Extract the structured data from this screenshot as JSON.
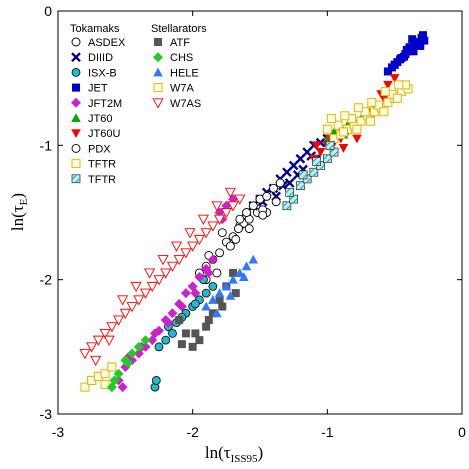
{
  "chart_data": {
    "type": "scatter",
    "title": "",
    "xlabel": {
      "main": "ln(τ",
      "sub": "ISS95",
      "close": ")"
    },
    "ylabel": {
      "main": "ln(τ",
      "sub": "E",
      "close": ")"
    },
    "xlim": [
      -3,
      0
    ],
    "ylim": [
      -3,
      0
    ],
    "x_ticks": [
      -3,
      -2,
      -1,
      0
    ],
    "y_ticks": [
      -3,
      -2,
      -1,
      0
    ],
    "x_tick_labels": [
      "-3",
      "-2",
      "-1",
      "0"
    ],
    "y_tick_labels": [
      "-3",
      "-2",
      "-1",
      "0"
    ],
    "grid": false,
    "legend_placement": "top-left",
    "legend_groups": [
      {
        "heading": "Tokamaks",
        "entries": [
          "ASDEX",
          "DIIID",
          "ISX-B",
          "JET",
          "JFT2M",
          "JT60",
          "JT60U",
          "PDX",
          "TFTR",
          "TFTR"
        ]
      },
      {
        "heading": "Stellarators",
        "entries": [
          "ATF",
          "CHS",
          "HELE",
          "W7A",
          "W7AS"
        ]
      }
    ],
    "series": [
      {
        "name": "ASDEX",
        "marker": "circle-open",
        "color": "#000000",
        "x": [
          -1.95,
          -1.9,
          -1.85,
          -1.8,
          -1.75,
          -1.7,
          -1.65,
          -1.6,
          -1.55,
          -1.5,
          -1.45,
          -1.9,
          -1.82,
          -1.72,
          -1.62,
          -1.52,
          -1.78,
          -1.68,
          -1.58,
          -1.48,
          -1.88,
          -1.66
        ],
        "y": [
          -1.95,
          -1.9,
          -1.85,
          -1.8,
          -1.72,
          -1.68,
          -1.6,
          -1.52,
          -1.45,
          -1.4,
          -1.5,
          -2.0,
          -1.95,
          -1.75,
          -1.58,
          -1.5,
          -1.65,
          -1.7,
          -1.55,
          -1.48,
          -1.82,
          -1.62
        ]
      },
      {
        "name": "DIIID",
        "marker": "x",
        "color": "#00008b",
        "x": [
          -1.55,
          -1.5,
          -1.45,
          -1.4,
          -1.35,
          -1.3,
          -1.25,
          -1.2,
          -1.15,
          -1.1,
          -1.05,
          -1.0,
          -1.38,
          -1.28,
          -1.18,
          -1.08,
          -1.48,
          -1.33,
          -1.22,
          -1.12
        ],
        "y": [
          -1.45,
          -1.4,
          -1.35,
          -1.32,
          -1.25,
          -1.2,
          -1.15,
          -1.1,
          -1.05,
          -1.0,
          -0.98,
          -0.95,
          -1.38,
          -1.28,
          -1.18,
          -1.1,
          -1.42,
          -1.3,
          -1.22,
          -1.08
        ]
      },
      {
        "name": "ISX-B",
        "marker": "circle",
        "color": "#22bbcc",
        "x": [
          -2.2,
          -2.15,
          -2.1,
          -2.05,
          -2.0,
          -1.95,
          -1.9,
          -1.85,
          -2.25,
          -2.18,
          -2.08,
          -1.98,
          -2.28,
          -2.27,
          -1.92,
          -2.12
        ],
        "y": [
          -2.45,
          -2.4,
          -2.3,
          -2.25,
          -2.2,
          -2.15,
          -2.1,
          -2.05,
          -2.5,
          -2.35,
          -2.28,
          -2.18,
          -2.8,
          -2.75,
          -2.0,
          -2.32
        ]
      },
      {
        "name": "JET",
        "marker": "square",
        "color": "#0000cc",
        "x": [
          -0.55,
          -0.5,
          -0.45,
          -0.4,
          -0.35,
          -0.3,
          -0.48,
          -0.42,
          -0.38,
          -0.33,
          -0.28,
          -0.52,
          -0.46,
          -0.36,
          -0.31,
          -0.43,
          -0.39,
          -0.34,
          -0.29,
          -0.5,
          -0.41,
          -0.37
        ],
        "y": [
          -0.45,
          -0.4,
          -0.35,
          -0.3,
          -0.25,
          -0.2,
          -0.38,
          -0.32,
          -0.28,
          -0.24,
          -0.22,
          -0.42,
          -0.36,
          -0.3,
          -0.26,
          -0.34,
          -0.27,
          -0.23,
          -0.18,
          -0.4,
          -0.29,
          -0.21
        ]
      },
      {
        "name": "JFT2M",
        "marker": "diamond",
        "color": "#cc22cc",
        "x": [
          -2.5,
          -2.45,
          -2.4,
          -2.35,
          -2.3,
          -2.25,
          -2.2,
          -2.15,
          -2.1,
          -2.05,
          -2.0,
          -1.95,
          -1.9,
          -1.85,
          -1.8,
          -1.75,
          -1.7,
          -2.48,
          -2.38,
          -2.28,
          -2.18,
          -2.08,
          -1.98,
          -1.88,
          -1.78,
          -2.55,
          -2.52
        ],
        "y": [
          -2.65,
          -2.6,
          -2.55,
          -2.5,
          -2.45,
          -2.38,
          -2.3,
          -2.25,
          -2.18,
          -2.1,
          -2.05,
          -1.98,
          -1.92,
          -1.85,
          -1.5,
          -1.45,
          -1.4,
          -2.58,
          -2.5,
          -2.4,
          -2.32,
          -2.2,
          -2.1,
          -1.95,
          -1.55,
          -2.75,
          -2.8
        ]
      },
      {
        "name": "JT60",
        "marker": "triangle",
        "color": "#00aa00",
        "x": [
          -1.0,
          -0.95,
          -0.9,
          -0.85,
          -0.8,
          -0.75,
          -0.7,
          -0.98,
          -0.88,
          -0.78
        ],
        "y": [
          -0.95,
          -0.9,
          -0.88,
          -0.85,
          -0.82,
          -0.8,
          -0.75,
          -1.0,
          -0.92,
          -0.86
        ]
      },
      {
        "name": "JT60U",
        "marker": "triangle-down",
        "color": "#ff0000",
        "x": [
          -1.1,
          -1.05,
          -1.0,
          -0.95,
          -0.9,
          -0.85,
          -0.8,
          -0.75,
          -0.7,
          -0.65,
          -0.6,
          -0.55,
          -0.5,
          -1.08,
          -0.98,
          -0.88,
          -0.78,
          -0.68,
          -0.58
        ],
        "y": [
          -1.1,
          -1.05,
          -1.0,
          -0.98,
          -0.95,
          -0.9,
          -0.85,
          -0.82,
          -0.75,
          -0.7,
          -0.62,
          -0.55,
          -0.5,
          -1.0,
          -0.95,
          -1.02,
          -0.95,
          -0.8,
          -0.65
        ]
      },
      {
        "name": "PDX",
        "marker": "circle-open",
        "color": "#000000",
        "x": [
          -1.65,
          -1.6,
          -1.55,
          -1.5,
          -1.45,
          -1.4,
          -1.35,
          -1.58,
          -1.48,
          -1.38
        ],
        "y": [
          -1.55,
          -1.5,
          -1.45,
          -1.4,
          -1.38,
          -1.32,
          -1.28,
          -1.62,
          -1.52,
          -1.42
        ]
      },
      {
        "name": "TFTR",
        "marker": "square-open",
        "color": "#ddbb00",
        "x": [
          -0.95,
          -0.9,
          -0.85,
          -0.8,
          -0.75,
          -0.7,
          -0.65,
          -0.6,
          -0.55,
          -0.5,
          -0.45,
          -0.4,
          -0.92,
          -0.82,
          -0.72,
          -0.62,
          -0.52,
          -0.42,
          -0.88,
          -0.78,
          -0.68,
          -0.58,
          -0.48,
          -1.0,
          -0.97,
          -0.87,
          -0.77,
          -0.67,
          -0.57,
          -0.47,
          -2.75,
          -2.7,
          -2.65
        ],
        "y": [
          -0.95,
          -0.92,
          -0.88,
          -0.85,
          -0.82,
          -0.78,
          -0.75,
          -0.72,
          -0.68,
          -0.65,
          -0.6,
          -0.58,
          -0.85,
          -0.8,
          -0.75,
          -0.7,
          -0.62,
          -0.55,
          -0.9,
          -0.88,
          -0.82,
          -0.75,
          -0.65,
          -0.88,
          -0.8,
          -0.78,
          -0.72,
          -0.68,
          -0.6,
          -0.55,
          -2.75,
          -2.72,
          -2.78
        ]
      },
      {
        "name": "TFTR",
        "marker": "square-pattern",
        "color": "#33aaaa",
        "x": [
          -1.3,
          -1.25,
          -1.2,
          -1.15,
          -1.1,
          -1.05,
          -1.0,
          -0.95,
          -1.28,
          -1.18,
          -1.08,
          -0.98
        ],
        "y": [
          -1.45,
          -1.4,
          -1.3,
          -1.25,
          -1.2,
          -1.15,
          -1.1,
          -1.05,
          -1.35,
          -1.22,
          -1.12,
          -1.0
        ]
      },
      {
        "name": "ATF",
        "marker": "square",
        "color": "#555555",
        "x": [
          -2.1,
          -2.05,
          -2.0,
          -1.95,
          -1.9,
          -1.85,
          -1.8,
          -1.75,
          -1.7,
          -2.08,
          -1.98,
          -1.88,
          -1.78,
          -1.68
        ],
        "y": [
          -2.3,
          -2.4,
          -2.5,
          -2.45,
          -2.35,
          -2.25,
          -2.15,
          -2.05,
          -1.95,
          -2.48,
          -2.4,
          -2.3,
          -2.2,
          -2.1
        ]
      },
      {
        "name": "CHS",
        "marker": "diamond",
        "color": "#22cc22",
        "x": [
          -2.6,
          -2.55,
          -2.5,
          -2.45,
          -2.4,
          -2.35,
          -2.58,
          -2.48
        ],
        "y": [
          -2.8,
          -2.7,
          -2.6,
          -2.55,
          -2.5,
          -2.45,
          -2.75,
          -2.62
        ]
      },
      {
        "name": "HELE",
        "marker": "triangle",
        "color": "#3377ff",
        "x": [
          -1.9,
          -1.85,
          -1.8,
          -1.75,
          -1.7,
          -1.65,
          -1.6,
          -1.55,
          -1.82,
          -1.72,
          -1.62
        ],
        "y": [
          -2.2,
          -2.15,
          -2.1,
          -2.05,
          -2.0,
          -1.95,
          -1.9,
          -1.85,
          -2.25,
          -2.12,
          -1.98
        ]
      },
      {
        "name": "W7A",
        "marker": "square-open",
        "color": "#ddbb00",
        "x": [
          -2.8,
          -2.75,
          -2.7,
          -2.65,
          -2.6
        ],
        "y": [
          -2.8,
          -2.75,
          -2.72,
          -2.7,
          -2.65
        ]
      },
      {
        "name": "W7AS",
        "marker": "triangle-down-open",
        "color": "#ff0000",
        "x": [
          -2.8,
          -2.75,
          -2.7,
          -2.65,
          -2.6,
          -2.55,
          -2.5,
          -2.45,
          -2.4,
          -2.35,
          -2.3,
          -2.25,
          -2.2,
          -2.15,
          -2.1,
          -2.05,
          -2.0,
          -1.95,
          -1.9,
          -1.85,
          -1.8,
          -1.75,
          -1.7,
          -1.65,
          -2.72,
          -2.62,
          -2.52,
          -2.42,
          -2.32,
          -2.22,
          -2.12,
          -2.02,
          -1.92,
          -1.82,
          -1.72
        ],
        "y": [
          -2.55,
          -2.5,
          -2.45,
          -2.4,
          -2.35,
          -2.3,
          -2.25,
          -2.2,
          -2.15,
          -2.1,
          -2.05,
          -2.0,
          -1.95,
          -1.9,
          -1.85,
          -1.8,
          -1.75,
          -1.7,
          -1.65,
          -1.6,
          -1.55,
          -1.5,
          -1.45,
          -1.4,
          -2.6,
          -2.45,
          -2.15,
          -2.05,
          -1.95,
          -1.85,
          -1.75,
          -1.65,
          -1.55,
          -1.45,
          -1.35
        ]
      }
    ]
  }
}
